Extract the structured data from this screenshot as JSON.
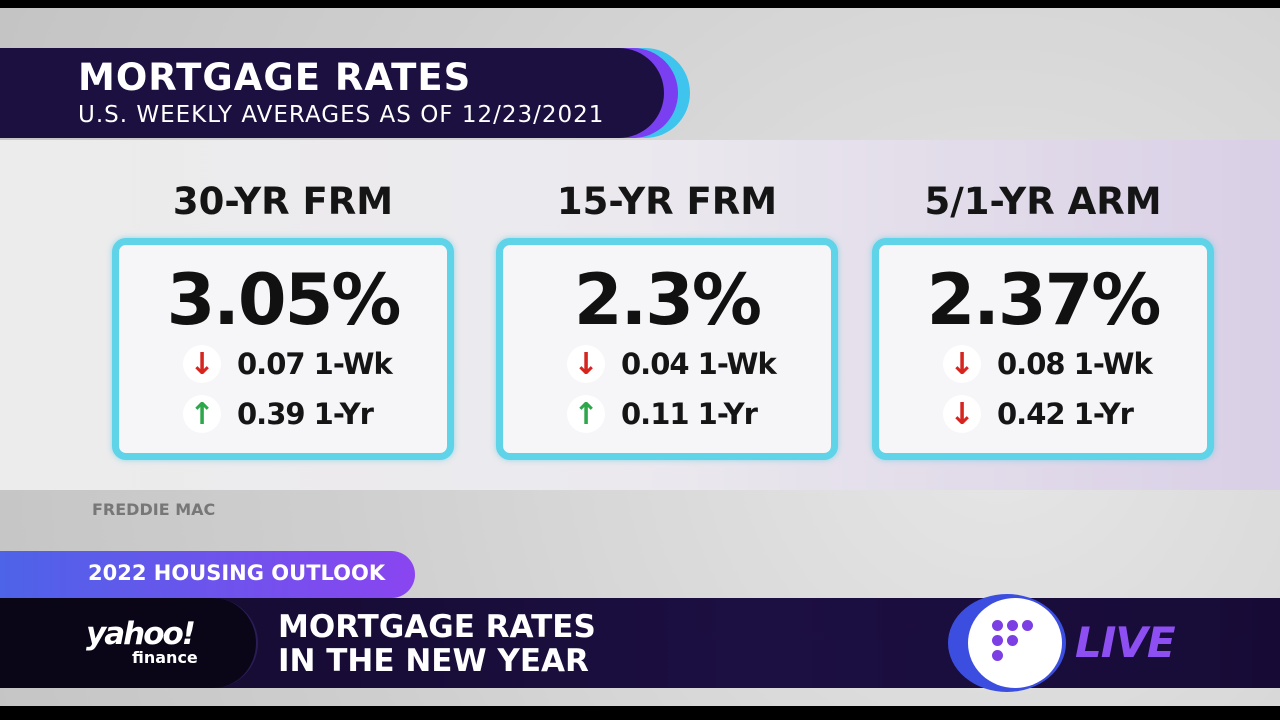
{
  "header": {
    "title": "MORTGAGE RATES",
    "subtitle": "U.S. WEEKLY AVERAGES AS OF 12/23/2021"
  },
  "rates": [
    {
      "label": "30-YR FRM",
      "rate": "3.05%",
      "week": {
        "direction": "down",
        "text": "0.07 1-Wk"
      },
      "year": {
        "direction": "up",
        "text": "0.39 1-Yr"
      }
    },
    {
      "label": "15-YR FRM",
      "rate": "2.3%",
      "week": {
        "direction": "down",
        "text": "0.04 1-Wk"
      },
      "year": {
        "direction": "up",
        "text": "0.11 1-Yr"
      }
    },
    {
      "label": "5/1-YR ARM",
      "rate": "2.37%",
      "week": {
        "direction": "down",
        "text": "0.08 1-Wk"
      },
      "year": {
        "direction": "down",
        "text": "0.42 1-Yr"
      }
    }
  ],
  "source": "FREDDIE MAC",
  "lower_third": {
    "tag": "2022 HOUSING OUTLOOK",
    "logo_top": "yahoo!",
    "logo_bottom": "finance",
    "headline_1": "MORTGAGE RATES",
    "headline_2": "IN THE NEW YEAR",
    "live": "LIVE"
  },
  "icons": {
    "down": "arrow-down-icon",
    "up": "arrow-up-icon"
  },
  "colors": {
    "down": "#d6241f",
    "up": "#2ea64a",
    "card_border": "#5fd3e8",
    "brand": "#7b3fe4"
  }
}
